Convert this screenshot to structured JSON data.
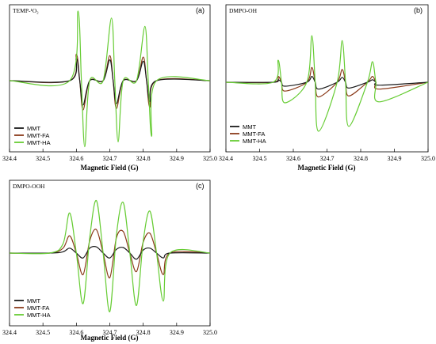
{
  "figure": {
    "colors": {
      "MMT": "#1a1a1a",
      "MMT-FA": "#8b3a1a",
      "MMT-HA": "#66cc33"
    }
  },
  "chart_data": [
    {
      "type": "line",
      "panel_tag": "(a)",
      "probe_label": "TEMP-¹O₂",
      "xlabel": "Magnetic Field (G)",
      "xlim": [
        324.4,
        325.0
      ],
      "xticks": [
        "324.4",
        "324.5",
        "324.6",
        "324.7",
        "324.8",
        "324.9",
        "325.0"
      ],
      "legend_position": "bottom-left",
      "series": [
        {
          "name": "MMT",
          "x": [
            324.4,
            324.58,
            324.6,
            324.61,
            324.62,
            324.64,
            324.68,
            324.7,
            324.71,
            324.72,
            324.74,
            324.78,
            324.8,
            324.81,
            324.82,
            324.84,
            325.0
          ],
          "y": [
            0,
            0,
            0.32,
            0,
            -0.35,
            0,
            0,
            0.3,
            0,
            -0.33,
            0,
            0,
            0.28,
            0,
            -0.3,
            0,
            0
          ]
        },
        {
          "name": "MMT-FA",
          "x": [
            324.4,
            324.58,
            324.6,
            324.61,
            324.62,
            324.64,
            324.68,
            324.7,
            324.71,
            324.72,
            324.74,
            324.78,
            324.8,
            324.81,
            324.82,
            324.84,
            325.0
          ],
          "y": [
            0,
            0,
            0.38,
            0,
            -0.42,
            0,
            0,
            0.36,
            0,
            -0.4,
            0,
            0,
            0.34,
            0,
            -0.38,
            0,
            0
          ]
        },
        {
          "name": "MMT-HA",
          "x": [
            324.4,
            324.58,
            324.605,
            324.615,
            324.625,
            324.64,
            324.68,
            324.705,
            324.715,
            324.725,
            324.74,
            324.78,
            324.805,
            324.815,
            324.825,
            324.84,
            325.0
          ],
          "y": [
            0,
            0,
            1.0,
            0,
            -0.95,
            0,
            0,
            0.9,
            0,
            -0.88,
            0,
            0,
            0.78,
            0,
            -0.8,
            0,
            0
          ]
        }
      ]
    },
    {
      "type": "line",
      "panel_tag": "(b)",
      "probe_label": "DMPO-OH",
      "xlabel": "Magnetic Field (G)",
      "xlim": [
        324.4,
        325.0
      ],
      "xticks": [
        "324.4",
        "324.5",
        "324.6",
        "324.7",
        "324.8",
        "324.9",
        "325.0"
      ],
      "legend_position": "bottom-left",
      "series": [
        {
          "name": "MMT",
          "x": [
            324.4,
            324.54,
            324.555,
            324.565,
            324.575,
            324.64,
            324.655,
            324.665,
            324.675,
            324.73,
            324.745,
            324.755,
            324.765,
            324.82,
            324.835,
            324.845,
            324.855,
            325.0
          ],
          "y": [
            0,
            0,
            0.05,
            0,
            -0.08,
            0,
            0.12,
            0,
            -0.14,
            0,
            0.1,
            0,
            -0.12,
            0,
            0.05,
            0,
            -0.06,
            0
          ]
        },
        {
          "name": "MMT-FA",
          "x": [
            324.4,
            324.54,
            324.555,
            324.565,
            324.575,
            324.64,
            324.655,
            324.665,
            324.675,
            324.73,
            324.745,
            324.755,
            324.765,
            324.82,
            324.835,
            324.845,
            324.855,
            325.0
          ],
          "y": [
            0,
            0,
            0.12,
            0,
            -0.18,
            0,
            0.3,
            0,
            -0.3,
            0,
            0.26,
            0,
            -0.28,
            0,
            0.12,
            0,
            -0.14,
            0
          ]
        },
        {
          "name": "MMT-HA",
          "x": [
            324.4,
            324.54,
            324.555,
            324.565,
            324.575,
            324.64,
            324.655,
            324.665,
            324.675,
            324.73,
            324.745,
            324.755,
            324.765,
            324.82,
            324.835,
            324.845,
            324.855,
            325.0
          ],
          "y": [
            0,
            0,
            0.45,
            0,
            -0.42,
            0,
            0.95,
            0,
            -1.0,
            0,
            0.85,
            0,
            -0.9,
            0,
            0.42,
            0,
            -0.4,
            0
          ]
        }
      ]
    },
    {
      "type": "line",
      "panel_tag": "(c)",
      "probe_label": "DMPO-OOH",
      "xlabel": "Magnetic Field (G)",
      "xlim": [
        324.4,
        325.0
      ],
      "xticks": [
        "324.4",
        "324.5",
        "324.6",
        "324.7",
        "324.8",
        "324.9",
        "325.0"
      ],
      "legend_position": "bottom-left",
      "series": [
        {
          "name": "MMT",
          "x": [
            324.4,
            324.52,
            324.56,
            324.58,
            324.6,
            324.62,
            324.64,
            324.66,
            324.68,
            324.7,
            324.72,
            324.74,
            324.76,
            324.78,
            324.8,
            324.82,
            324.84,
            324.86,
            324.88,
            325.0
          ],
          "y": [
            0,
            0,
            0.02,
            0.08,
            0.0,
            -0.08,
            0.08,
            0.1,
            0.0,
            -0.08,
            0.06,
            0.09,
            0.0,
            -0.1,
            0.05,
            0.08,
            0.0,
            -0.08,
            0.0,
            0
          ]
        },
        {
          "name": "MMT-FA",
          "x": [
            324.4,
            324.52,
            324.56,
            324.58,
            324.6,
            324.62,
            324.64,
            324.66,
            324.68,
            324.7,
            324.72,
            324.74,
            324.76,
            324.78,
            324.8,
            324.82,
            324.84,
            324.86,
            324.88,
            325.0
          ],
          "y": [
            0,
            0,
            0.08,
            0.28,
            0.0,
            -0.35,
            0.2,
            0.38,
            0.0,
            -0.4,
            0.25,
            0.35,
            0.0,
            -0.3,
            0.18,
            0.32,
            0.0,
            -0.35,
            0.0,
            0
          ]
        },
        {
          "name": "MMT-HA",
          "x": [
            324.4,
            324.52,
            324.56,
            324.58,
            324.6,
            324.62,
            324.64,
            324.66,
            324.68,
            324.7,
            324.72,
            324.74,
            324.76,
            324.78,
            324.8,
            324.82,
            324.84,
            324.86,
            324.88,
            325.0
          ],
          "y": [
            0,
            0,
            0.15,
            0.65,
            0.0,
            -0.82,
            0.25,
            0.85,
            0.0,
            -0.95,
            0.3,
            0.82,
            0.0,
            -0.85,
            0.2,
            0.68,
            0.0,
            -0.78,
            0.0,
            0
          ]
        }
      ]
    }
  ]
}
